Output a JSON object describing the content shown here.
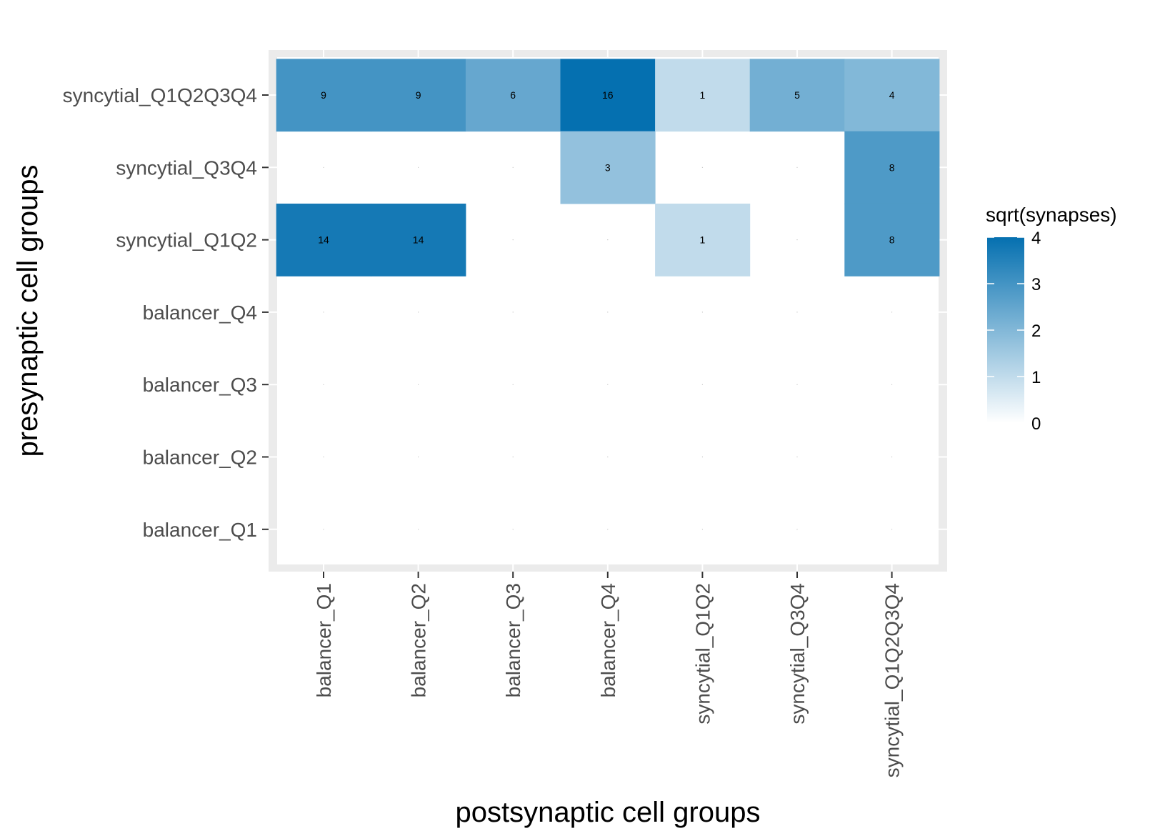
{
  "chart_data": {
    "type": "heatmap",
    "xlabel": "postsynaptic cell groups",
    "ylabel": "presynaptic cell groups",
    "x_categories": [
      "balancer_Q1",
      "balancer_Q2",
      "balancer_Q3",
      "balancer_Q4",
      "syncytial_Q1Q2",
      "syncytial_Q3Q4",
      "syncytial_Q1Q2Q3Q4"
    ],
    "y_categories": [
      "balancer_Q1",
      "balancer_Q2",
      "balancer_Q3",
      "balancer_Q4",
      "syncytial_Q1Q2",
      "syncytial_Q3Q4",
      "syncytial_Q1Q2Q3Q4"
    ],
    "rows": [
      {
        "pre": "syncytial_Q1Q2Q3Q4",
        "values": [
          9,
          9,
          6,
          16,
          1,
          5,
          4
        ]
      },
      {
        "pre": "syncytial_Q3Q4",
        "values": [
          0,
          0,
          0,
          3,
          0,
          0,
          8
        ]
      },
      {
        "pre": "syncytial_Q1Q2",
        "values": [
          14,
          14,
          0,
          0,
          1,
          0,
          8
        ]
      },
      {
        "pre": "balancer_Q4",
        "values": [
          0,
          0,
          0,
          0,
          0,
          0,
          0
        ]
      },
      {
        "pre": "balancer_Q3",
        "values": [
          0,
          0,
          0,
          0,
          0,
          0,
          0
        ]
      },
      {
        "pre": "balancer_Q2",
        "values": [
          0,
          0,
          0,
          0,
          0,
          0,
          0
        ]
      },
      {
        "pre": "balancer_Q1",
        "values": [
          0,
          0,
          0,
          0,
          0,
          0,
          0
        ]
      }
    ],
    "legend": {
      "title": "sqrt(synapses)",
      "ticks": [
        0,
        1,
        2,
        3,
        4
      ],
      "range": [
        0,
        4
      ],
      "low_color": "#ffffff",
      "high_color": "#0570b0"
    },
    "panel_background": "#ebebeb",
    "grid": true
  }
}
